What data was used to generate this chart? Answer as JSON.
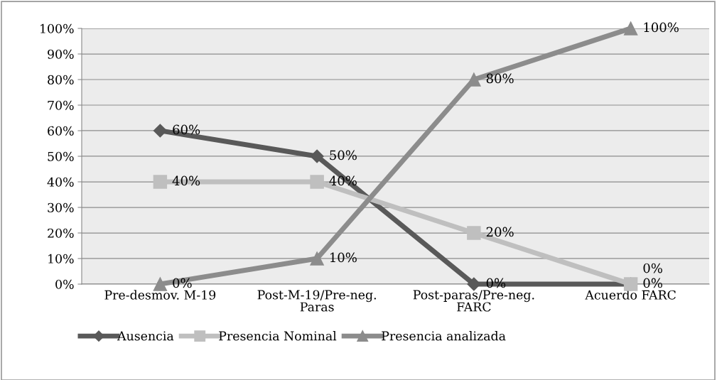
{
  "chart_data": {
    "type": "line",
    "categories": [
      "Pre-desmov. M-19",
      "Post-M-19/Pre-neg.\nParas",
      "Post-paras/Pre-neg.\nFARC",
      "Acuerdo FARC"
    ],
    "series": [
      {
        "name": "Ausencia",
        "color": "#595959",
        "marker": "diamond",
        "values": [
          60,
          50,
          0,
          0
        ],
        "value_labels": [
          "60%",
          "50%",
          "0%",
          "0%"
        ]
      },
      {
        "name": "Presencia Nominal",
        "color": "#bfbfbf",
        "marker": "square",
        "values": [
          40,
          40,
          20,
          0
        ],
        "value_labels": [
          "40%",
          "40%",
          "20%",
          "0%"
        ]
      },
      {
        "name": "Presencia analizada",
        "color": "#8c8c8c",
        "marker": "triangle",
        "values": [
          0,
          10,
          80,
          100
        ],
        "value_labels": [
          "0%",
          "10%",
          "80%",
          "100%"
        ]
      }
    ],
    "ylim": [
      0,
      100
    ],
    "yticks": [
      {
        "value": 0,
        "label": "0%"
      },
      {
        "value": 10,
        "label": "10%"
      },
      {
        "value": 20,
        "label": "20%"
      },
      {
        "value": 30,
        "label": "30%"
      },
      {
        "value": 40,
        "label": "40%"
      },
      {
        "value": 50,
        "label": "50%"
      },
      {
        "value": 60,
        "label": "60%"
      },
      {
        "value": 70,
        "label": "70%"
      },
      {
        "value": 80,
        "label": "80%"
      },
      {
        "value": 90,
        "label": "90%"
      },
      {
        "value": 100,
        "label": "100%"
      }
    ],
    "grid": "y",
    "legend": "bottom left",
    "line_style": "solid"
  }
}
